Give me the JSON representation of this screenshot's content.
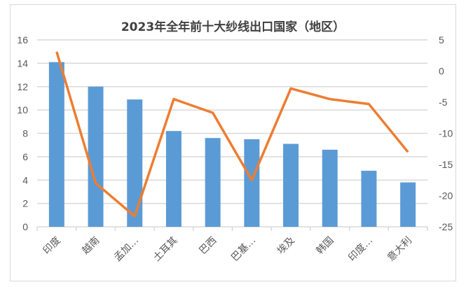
{
  "chart_data": {
    "type": "bar+line",
    "title": "2023年全年前十大纱线出口国家（地区）",
    "categories": [
      "印度",
      "越南",
      "孟加…",
      "土耳其",
      "巴西",
      "巴基…",
      "埃及",
      "韩国",
      "印度…",
      "意大利"
    ],
    "series": [
      {
        "type": "bar",
        "axis": "left",
        "color": "#5b9bd5",
        "values": [
          14.1,
          12.0,
          10.9,
          8.2,
          7.6,
          7.5,
          7.1,
          6.6,
          4.8,
          3.8
        ]
      },
      {
        "type": "line",
        "axis": "right",
        "color": "#ed7d31",
        "values": [
          3.1,
          -18.0,
          -23.3,
          -4.5,
          -6.7,
          -17.5,
          -2.8,
          -4.5,
          -5.3,
          -13.0
        ]
      }
    ],
    "y_left": {
      "range": [
        0,
        16
      ],
      "ticks": [
        "0",
        "2",
        "4",
        "6",
        "8",
        "10",
        "12",
        "14",
        "16"
      ]
    },
    "y_right": {
      "range": [
        -25,
        5
      ],
      "ticks": [
        "-25",
        "-20",
        "-15",
        "-10",
        "-5",
        "0",
        "5"
      ]
    },
    "grid": true,
    "legend": "none"
  }
}
